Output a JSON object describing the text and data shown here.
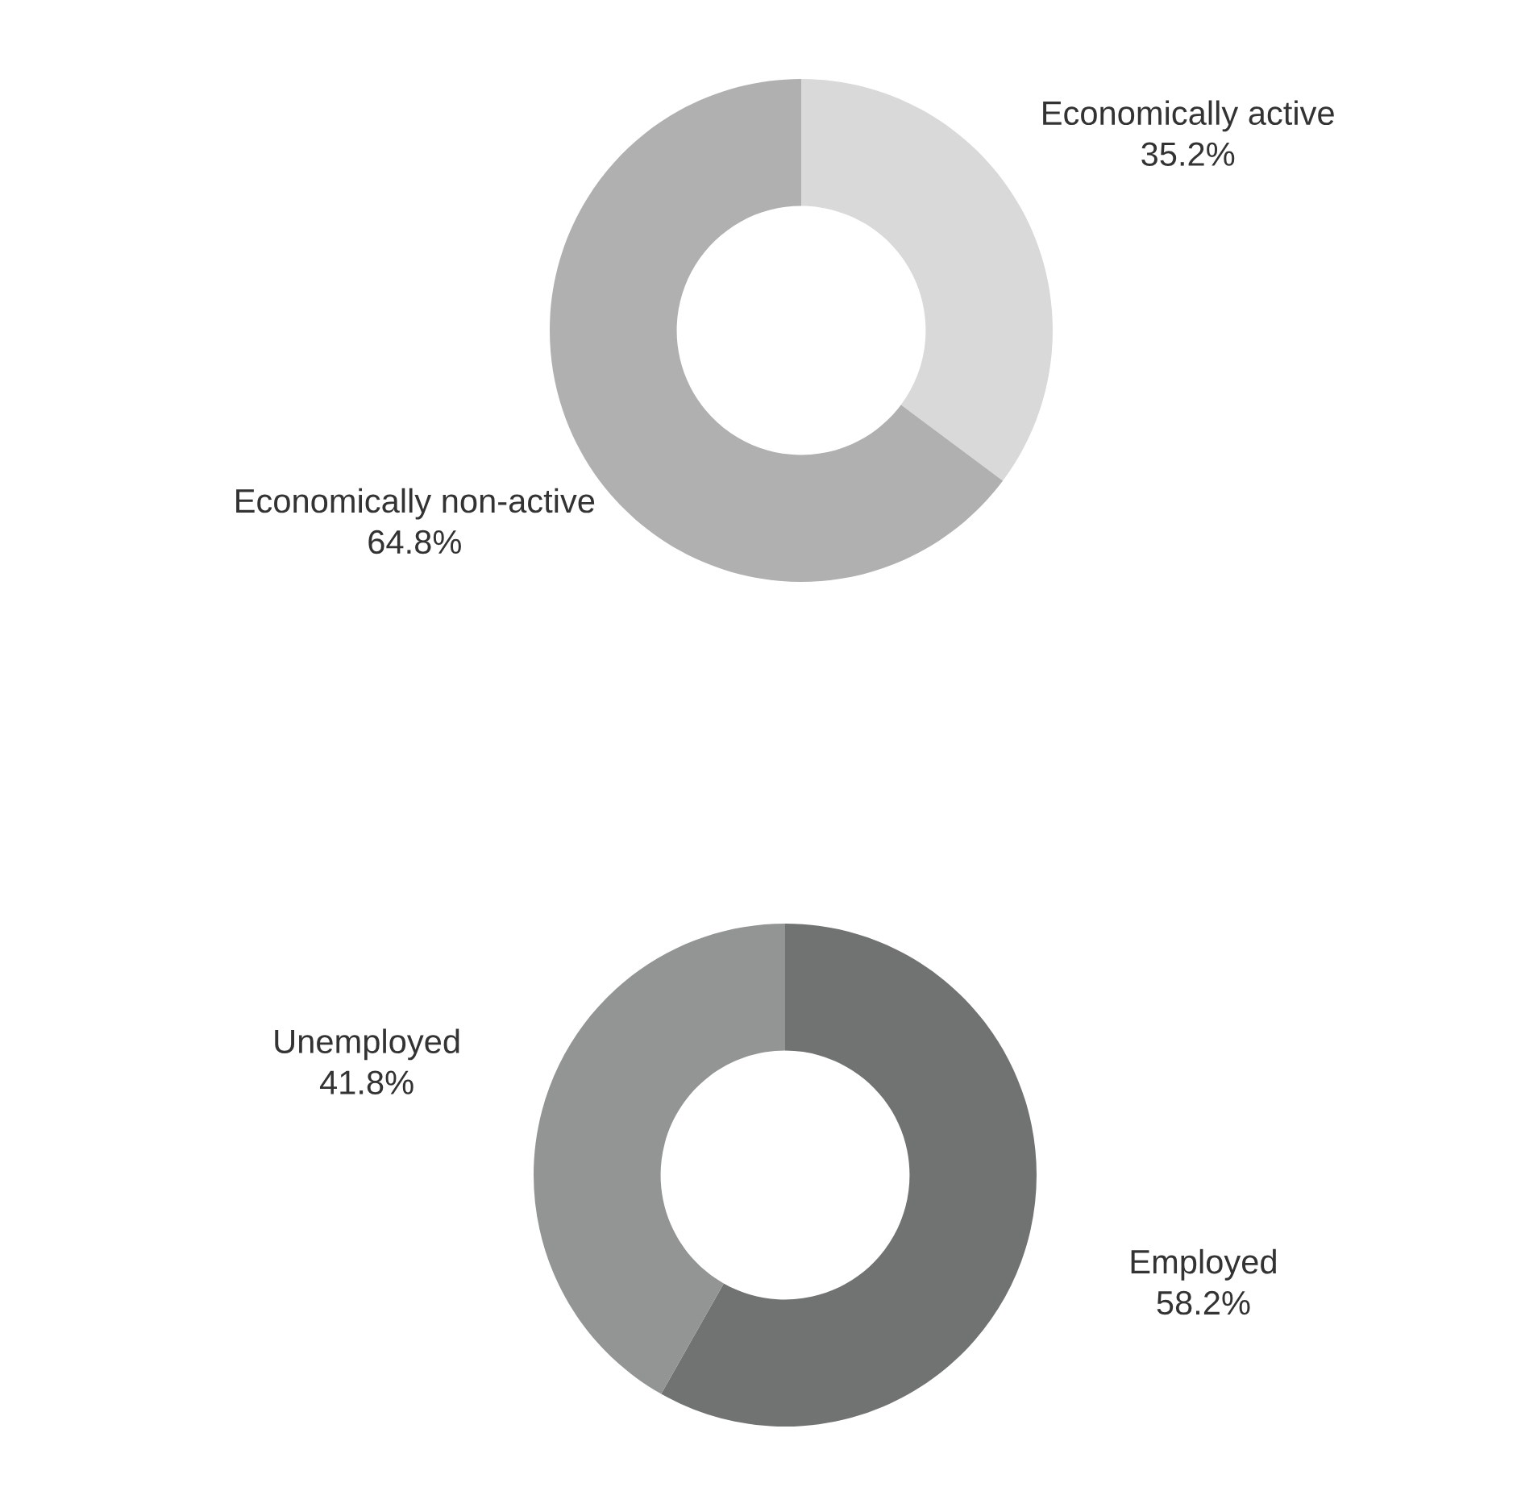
{
  "chart_data": [
    {
      "type": "donut",
      "categories": [
        "Economically active",
        "Economically non-active"
      ],
      "values": [
        35.2,
        64.8
      ],
      "colors": [
        "#d9d9d9",
        "#b0b0b0"
      ],
      "value_labels": [
        "35.2%",
        "64.8%"
      ]
    },
    {
      "type": "donut",
      "categories": [
        "Employed",
        "Unemployed"
      ],
      "values": [
        58.2,
        41.8
      ],
      "colors": [
        "#717372",
        "#939594"
      ],
      "value_labels": [
        "58.2%",
        "41.8%"
      ]
    }
  ]
}
